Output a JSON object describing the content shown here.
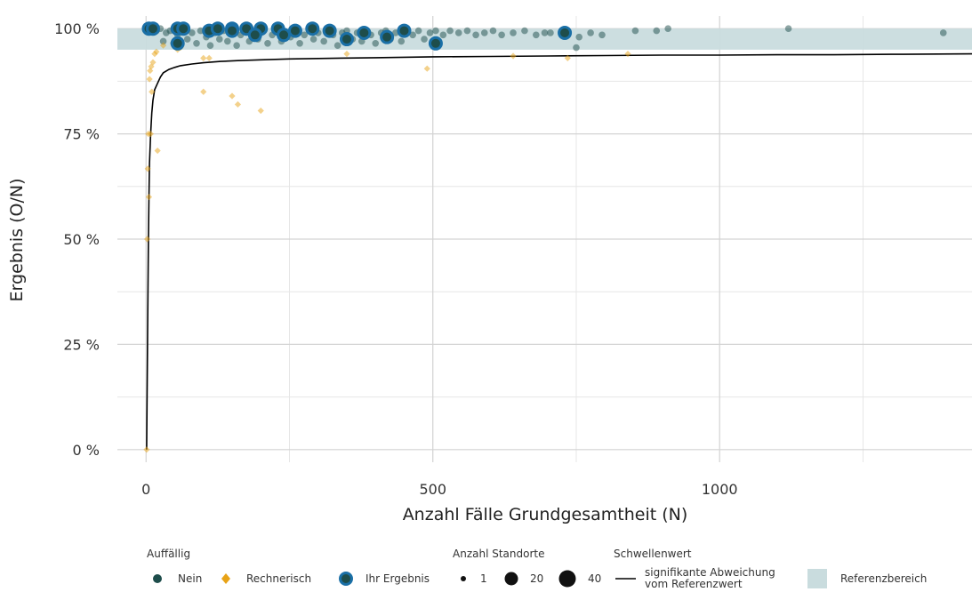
{
  "chart_data": {
    "type": "scatter",
    "xlabel": "Anzahl Fälle Grundgesamtheit (N)",
    "ylabel": "Ergebnis (O/N)",
    "xlim": [
      -50,
      1440
    ],
    "ylim": [
      -0.03,
      1.03
    ],
    "x_ticks": [
      0,
      500,
      1000
    ],
    "x_tick_labels": [
      "0",
      "500",
      "1000"
    ],
    "x_minor_gridlines": [
      250,
      750,
      1250
    ],
    "y_ticks": [
      0,
      0.25,
      0.5,
      0.75,
      1.0
    ],
    "y_tick_labels": [
      "0 %",
      "25 %",
      "50 %",
      "75 %",
      "100 %"
    ],
    "y_minor_gridlines": [
      0.125,
      0.375,
      0.625,
      0.875
    ],
    "grid": true,
    "reference_range": {
      "label": "Referenzbereich",
      "y_min": 0.95,
      "y_max": 1.0,
      "color": "#c9dcde"
    },
    "threshold_line": {
      "label": "signifikante Abweichung vom Referenzwert",
      "x": [
        3,
        4,
        5,
        6,
        8,
        10,
        12,
        15,
        20,
        25,
        30,
        40,
        50,
        60,
        80,
        100,
        130,
        160,
        200,
        250,
        300,
        400,
        500,
        600,
        700,
        800,
        900,
        1000,
        1100,
        1200,
        1300,
        1440
      ],
      "y": [
        0.33,
        0.48,
        0.6,
        0.68,
        0.75,
        0.8,
        0.83,
        0.855,
        0.87,
        0.885,
        0.895,
        0.903,
        0.908,
        0.912,
        0.916,
        0.919,
        0.922,
        0.924,
        0.926,
        0.928,
        0.929,
        0.931,
        0.933,
        0.934,
        0.935,
        0.936,
        0.937,
        0.937,
        0.938,
        0.938,
        0.939,
        0.94
      ]
    },
    "series": [
      {
        "name": "Nein",
        "color": "#1e4d4b",
        "marker": "circle",
        "points": [
          [
            5,
            1.0
          ],
          [
            12,
            0.995
          ],
          [
            18,
            0.995
          ],
          [
            25,
            1.0
          ],
          [
            30,
            0.97
          ],
          [
            35,
            0.99
          ],
          [
            42,
            0.995
          ],
          [
            48,
            0.965
          ],
          [
            55,
            0.985
          ],
          [
            65,
            0.995
          ],
          [
            72,
            0.975
          ],
          [
            80,
            0.99
          ],
          [
            88,
            0.965
          ],
          [
            95,
            0.995
          ],
          [
            105,
            0.98
          ],
          [
            112,
            0.96
          ],
          [
            120,
            0.99
          ],
          [
            128,
            0.975
          ],
          [
            135,
            0.995
          ],
          [
            142,
            0.97
          ],
          [
            150,
            0.99
          ],
          [
            158,
            0.96
          ],
          [
            165,
            0.985
          ],
          [
            172,
            0.995
          ],
          [
            180,
            0.97
          ],
          [
            188,
            0.99
          ],
          [
            195,
            0.975
          ],
          [
            205,
            0.995
          ],
          [
            212,
            0.965
          ],
          [
            220,
            0.985
          ],
          [
            228,
            0.995
          ],
          [
            236,
            0.97
          ],
          [
            245,
            0.99
          ],
          [
            252,
            0.98
          ],
          [
            260,
            0.995
          ],
          [
            268,
            0.965
          ],
          [
            276,
            0.985
          ],
          [
            285,
            0.995
          ],
          [
            292,
            0.975
          ],
          [
            300,
            0.99
          ],
          [
            310,
            0.97
          ],
          [
            318,
            0.995
          ],
          [
            326,
            0.985
          ],
          [
            334,
            0.96
          ],
          [
            342,
            0.99
          ],
          [
            350,
            0.995
          ],
          [
            360,
            0.975
          ],
          [
            368,
            0.99
          ],
          [
            376,
            0.97
          ],
          [
            385,
            0.995
          ],
          [
            392,
            0.985
          ],
          [
            400,
            0.965
          ],
          [
            410,
            0.99
          ],
          [
            418,
            0.995
          ],
          [
            426,
            0.975
          ],
          [
            435,
            0.99
          ],
          [
            445,
            0.97
          ],
          [
            455,
            0.995
          ],
          [
            465,
            0.985
          ],
          [
            475,
            0.995
          ],
          [
            485,
            0.975
          ],
          [
            495,
            0.99
          ],
          [
            505,
            0.995
          ],
          [
            518,
            0.985
          ],
          [
            530,
            0.995
          ],
          [
            545,
            0.99
          ],
          [
            560,
            0.995
          ],
          [
            575,
            0.985
          ],
          [
            590,
            0.99
          ],
          [
            605,
            0.995
          ],
          [
            620,
            0.985
          ],
          [
            640,
            0.99
          ],
          [
            660,
            0.995
          ],
          [
            680,
            0.985
          ],
          [
            705,
            0.99
          ],
          [
            755,
            0.98
          ],
          [
            775,
            0.99
          ],
          [
            795,
            0.985
          ],
          [
            853,
            0.995
          ],
          [
            890,
            0.995
          ],
          [
            910,
            1.0
          ],
          [
            1120,
            1.0
          ],
          [
            1390,
            0.99
          ],
          [
            750,
            0.955
          ],
          [
            695,
            0.99
          ]
        ]
      },
      {
        "name": "Rechnerisch",
        "color": "#e8a317",
        "marker": "diamond",
        "points": [
          [
            1,
            0.0
          ],
          [
            2,
            0.5
          ],
          [
            3,
            0.667
          ],
          [
            4,
            0.75
          ],
          [
            5,
            0.6
          ],
          [
            8,
            0.75
          ],
          [
            10,
            0.85
          ],
          [
            6,
            0.88
          ],
          [
            7,
            0.9
          ],
          [
            9,
            0.91
          ],
          [
            12,
            0.92
          ],
          [
            15,
            0.94
          ],
          [
            18,
            0.945
          ],
          [
            20,
            0.71
          ],
          [
            55,
            0.95
          ],
          [
            100,
            0.85
          ],
          [
            110,
            0.93
          ],
          [
            150,
            0.84
          ],
          [
            160,
            0.82
          ],
          [
            200,
            0.805
          ],
          [
            350,
            0.94
          ],
          [
            490,
            0.905
          ],
          [
            640,
            0.935
          ],
          [
            735,
            0.93
          ],
          [
            840,
            0.94
          ],
          [
            100,
            0.93
          ],
          [
            60,
            0.955
          ],
          [
            30,
            0.96
          ]
        ]
      },
      {
        "name": "Ihr Ergebnis",
        "color": "#1e4d4b",
        "outline": "#1a6fa6",
        "marker": "circle-outlined",
        "points": [
          [
            5,
            1.0
          ],
          [
            12,
            1.0
          ],
          [
            55,
            1.0
          ],
          [
            65,
            1.0
          ],
          [
            110,
            0.995
          ],
          [
            125,
            1.0
          ],
          [
            150,
            1.0
          ],
          [
            175,
            1.0
          ],
          [
            200,
            1.0
          ],
          [
            230,
            1.0
          ],
          [
            260,
            0.995
          ],
          [
            290,
            1.0
          ],
          [
            320,
            0.995
          ],
          [
            350,
            0.975
          ],
          [
            380,
            0.99
          ],
          [
            420,
            0.98
          ],
          [
            450,
            0.995
          ],
          [
            505,
            0.965
          ],
          [
            730,
            0.99
          ],
          [
            55,
            0.965
          ],
          [
            150,
            0.995
          ],
          [
            240,
            0.985
          ],
          [
            190,
            0.985
          ]
        ],
        "sizes": [
          1,
          1,
          1,
          1,
          1,
          1,
          1,
          1,
          1,
          1,
          1,
          1,
          1,
          1,
          1,
          1,
          1,
          1,
          1,
          1,
          1,
          1,
          1
        ]
      }
    ],
    "legend": {
      "placement": "bottom",
      "groups": [
        {
          "title": "Auffällig",
          "items": [
            "Nein",
            "Rechnerisch",
            "Ihr Ergebnis"
          ]
        },
        {
          "title": "Anzahl Standorte",
          "items": [
            "1",
            "20",
            "40"
          ]
        },
        {
          "title": "Schwellenwert",
          "items": [
            "signifikante Abweichung",
            "vom Referenzwert"
          ]
        },
        {
          "title": "",
          "items": [
            "Referenzbereich"
          ]
        }
      ]
    }
  }
}
